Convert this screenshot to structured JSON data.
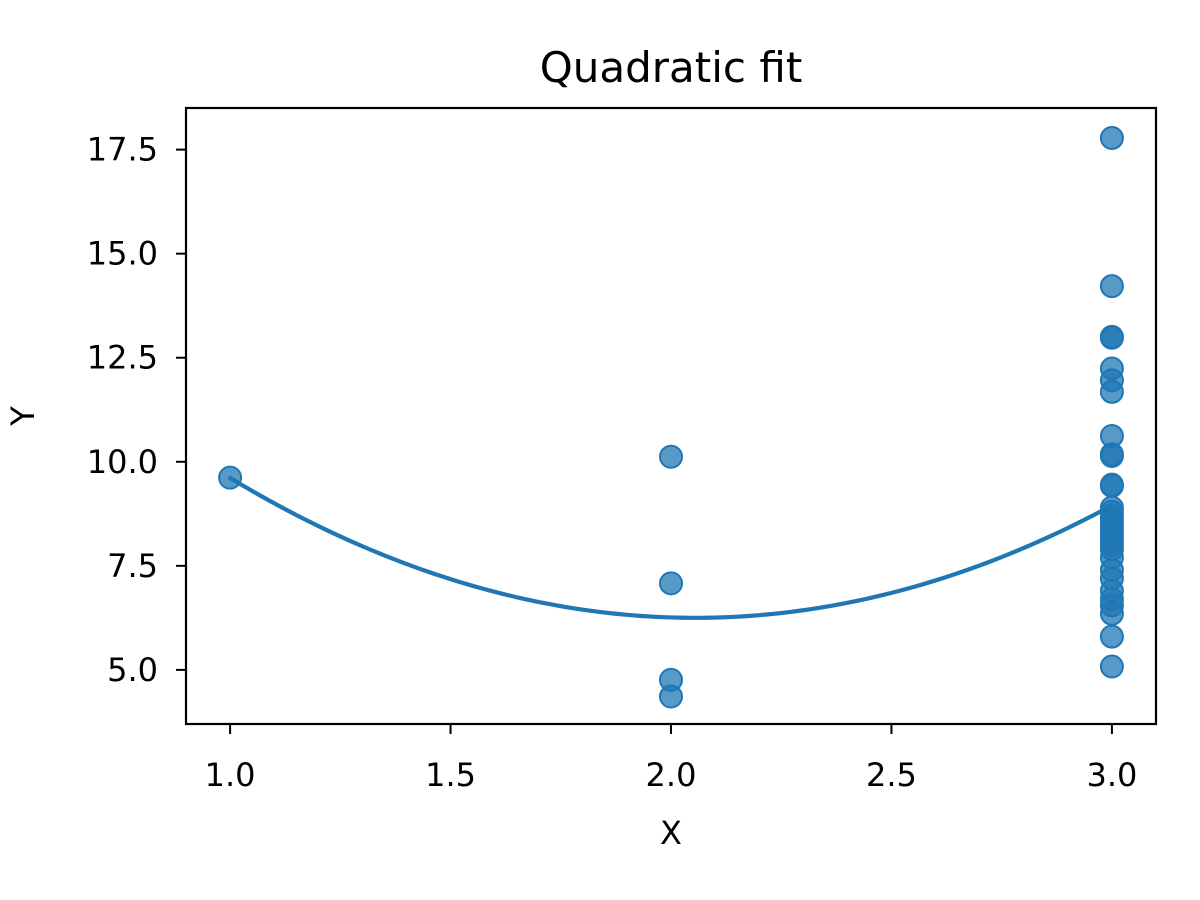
{
  "chart_data": {
    "type": "scatter",
    "title": "Quadratic fit",
    "xlabel": "X",
    "ylabel": "Y",
    "xlim": [
      0.9,
      3.1
    ],
    "ylim": [
      3.7,
      18.5
    ],
    "grid": false,
    "legend": "none",
    "x_ticks": [
      1.0,
      1.5,
      2.0,
      2.5,
      3.0
    ],
    "x_tick_labels": [
      "1.0",
      "1.5",
      "2.0",
      "2.5",
      "3.0"
    ],
    "y_ticks": [
      5.0,
      7.5,
      10.0,
      12.5,
      15.0,
      17.5
    ],
    "y_tick_labels": [
      "5.0",
      "7.5",
      "10.0",
      "12.5",
      "15.0",
      "17.5"
    ],
    "points": {
      "color": "#1f77b4",
      "x": [
        1,
        2,
        2,
        2,
        2,
        3,
        3,
        3,
        3,
        3,
        3,
        3,
        3,
        3,
        3,
        3,
        3,
        3,
        3,
        3,
        3,
        3,
        3,
        3,
        3,
        3,
        3,
        3,
        3,
        3,
        3,
        3,
        3,
        3,
        3,
        3,
        3
      ],
      "y": [
        9.62,
        10.12,
        7.08,
        4.76,
        4.36,
        17.78,
        14.22,
        13.0,
        12.98,
        12.24,
        11.96,
        11.68,
        10.62,
        10.18,
        10.14,
        9.45,
        9.42,
        8.9,
        8.8,
        8.7,
        8.6,
        8.5,
        8.4,
        8.3,
        8.2,
        8.1,
        8.0,
        7.9,
        7.7,
        7.4,
        7.2,
        6.9,
        6.7,
        6.55,
        6.35,
        5.8,
        5.08
      ]
    },
    "fit": {
      "type": "quadratic",
      "color": "#1f77b4",
      "coefficients": [
        3.02,
        -12.41,
        19.0
      ],
      "x_range": [
        1.0,
        3.0
      ]
    }
  }
}
